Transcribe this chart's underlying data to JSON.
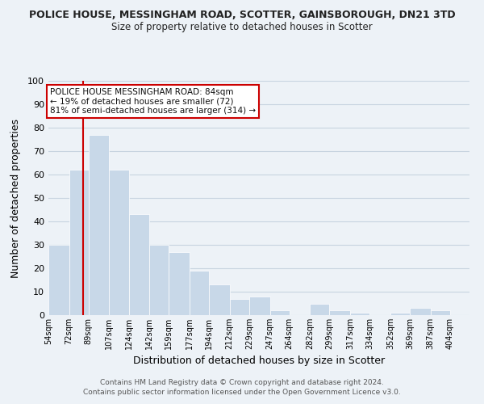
{
  "title": "POLICE HOUSE, MESSINGHAM ROAD, SCOTTER, GAINSBOROUGH, DN21 3TD",
  "subtitle": "Size of property relative to detached houses in Scotter",
  "xlabel": "Distribution of detached houses by size in Scotter",
  "ylabel": "Number of detached properties",
  "bar_labels": [
    "54sqm",
    "72sqm",
    "89sqm",
    "107sqm",
    "124sqm",
    "142sqm",
    "159sqm",
    "177sqm",
    "194sqm",
    "212sqm",
    "229sqm",
    "247sqm",
    "264sqm",
    "282sqm",
    "299sqm",
    "317sqm",
    "334sqm",
    "352sqm",
    "369sqm",
    "387sqm",
    "404sqm"
  ],
  "bar_values": [
    30,
    62,
    77,
    62,
    43,
    30,
    27,
    19,
    13,
    7,
    8,
    2,
    0,
    5,
    2,
    1,
    0,
    1,
    3,
    2,
    0
  ],
  "bar_color": "#c8d8e8",
  "grid_color": "#c8d4e0",
  "background_color": "#edf2f7",
  "property_line_x": 84,
  "annotation_text": "POLICE HOUSE MESSINGHAM ROAD: 84sqm\n← 19% of detached houses are smaller (72)\n81% of semi-detached houses are larger (314) →",
  "annotation_box_color": "#ffffff",
  "annotation_line_color": "#cc0000",
  "ylim": [
    0,
    100
  ],
  "footer1": "Contains HM Land Registry data © Crown copyright and database right 2024.",
  "footer2": "Contains public sector information licensed under the Open Government Licence v3.0.",
  "bin_edges": [
    54,
    72,
    89,
    107,
    124,
    142,
    159,
    177,
    194,
    212,
    229,
    247,
    264,
    282,
    299,
    317,
    334,
    352,
    369,
    387,
    404,
    421
  ]
}
